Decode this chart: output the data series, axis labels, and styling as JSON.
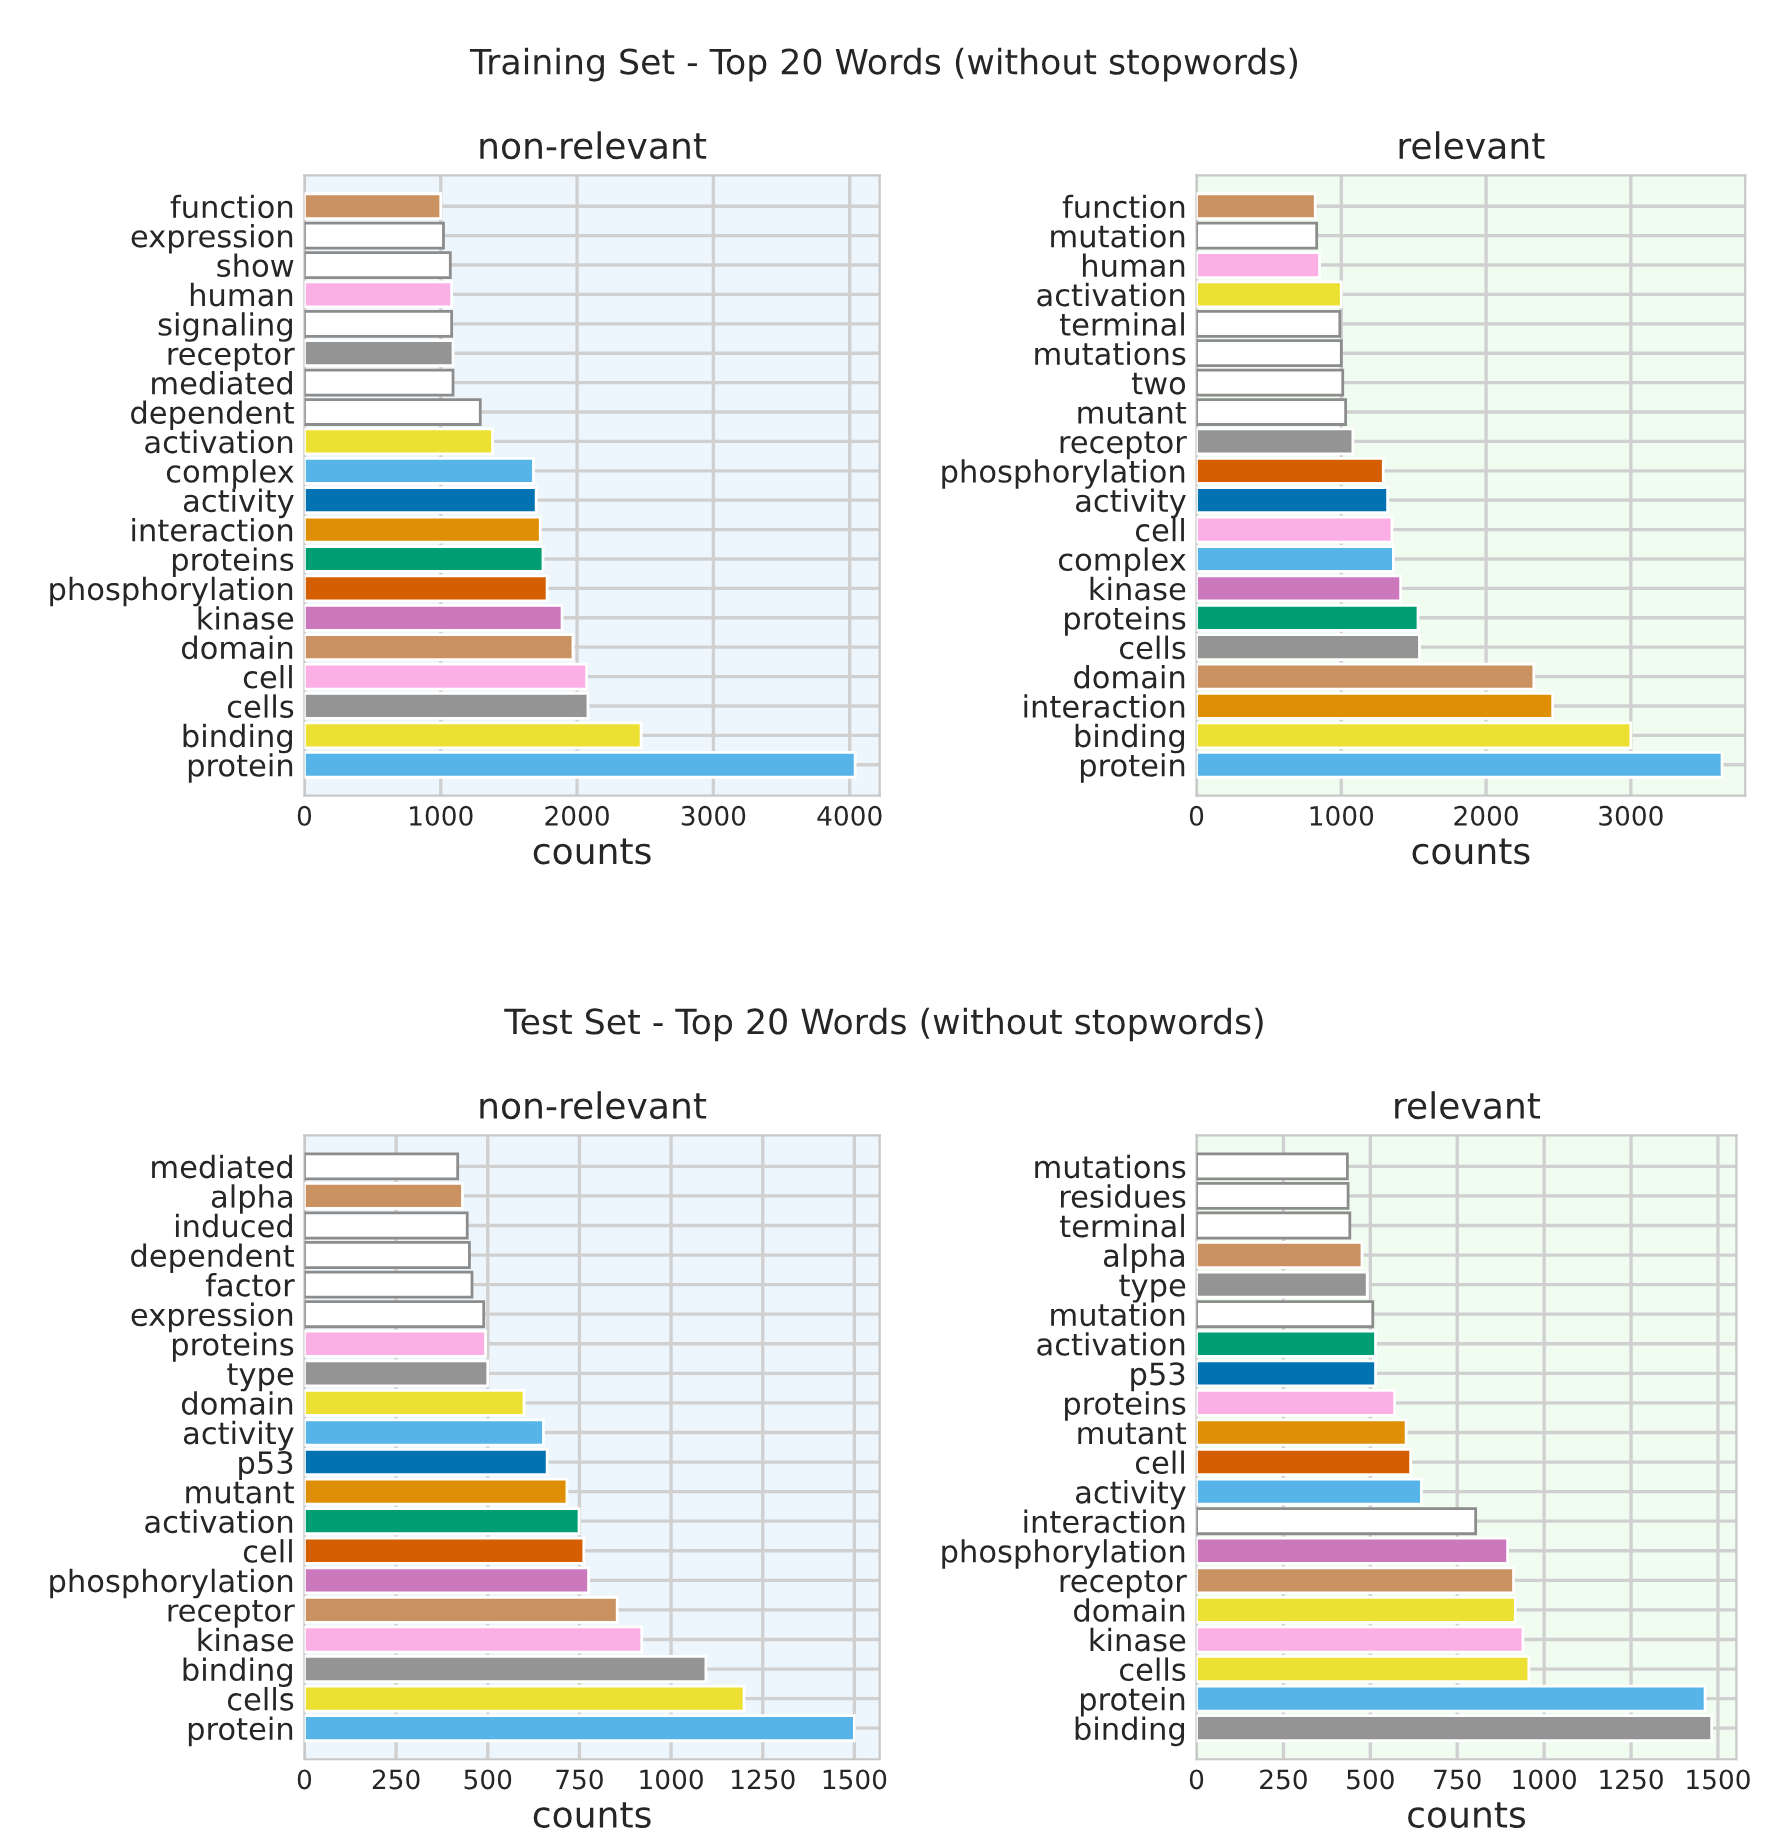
{
  "chart_data": [
    {
      "type": "bar",
      "orientation": "horizontal",
      "title": "non-relevant",
      "xlabel": "counts",
      "annotations": [
        "Training Set - Top 20 Words (without stopwords)"
      ],
      "categories": [
        "function",
        "expression",
        "show",
        "human",
        "signaling",
        "receptor",
        "mediated",
        "dependent",
        "activation",
        "complex",
        "activity",
        "interaction",
        "proteins",
        "phosphorylation",
        "kinase",
        "domain",
        "cell",
        "cells",
        "binding",
        "protein"
      ],
      "values": [
        1000,
        1020,
        1070,
        1080,
        1080,
        1090,
        1090,
        1290,
        1380,
        1680,
        1700,
        1730,
        1750,
        1780,
        1890,
        1970,
        2070,
        2080,
        2470,
        4040
      ],
      "colors": [
        "#ca9161",
        "#ffffff",
        "#ffffff",
        "#fbafe4",
        "#ffffff",
        "#949494",
        "#ffffff",
        "#ffffff",
        "#ece133",
        "#56b4e9",
        "#0173b2",
        "#de8f05",
        "#029e73",
        "#d55e00",
        "#cc78bc",
        "#ca9161",
        "#fbafe4",
        "#949494",
        "#ece133",
        "#56b4e9"
      ],
      "xlim": [
        0,
        4220
      ],
      "xticks": [
        0,
        1000,
        2000,
        3000,
        4000
      ],
      "grid": true,
      "legend": false
    },
    {
      "type": "bar",
      "orientation": "horizontal",
      "title": "relevant",
      "xlabel": "counts",
      "categories": [
        "function",
        "mutation",
        "human",
        "activation",
        "terminal",
        "mutations",
        "two",
        "mutant",
        "receptor",
        "phosphorylation",
        "activity",
        "cell",
        "complex",
        "kinase",
        "proteins",
        "cells",
        "domain",
        "interaction",
        "binding",
        "protein"
      ],
      "values": [
        820,
        830,
        850,
        1000,
        990,
        1000,
        1010,
        1030,
        1080,
        1290,
        1320,
        1350,
        1360,
        1410,
        1530,
        1540,
        2330,
        2460,
        3000,
        3630
      ],
      "colors": [
        "#ca9161",
        "#ffffff",
        "#fbafe4",
        "#ece133",
        "#ffffff",
        "#ffffff",
        "#ffffff",
        "#ffffff",
        "#949494",
        "#d55e00",
        "#0173b2",
        "#fbafe4",
        "#56b4e9",
        "#cc78bc",
        "#029e73",
        "#949494",
        "#ca9161",
        "#de8f05",
        "#ece133",
        "#56b4e9"
      ],
      "xlim": [
        0,
        3790
      ],
      "xticks": [
        0,
        1000,
        2000,
        3000
      ],
      "grid": true,
      "legend": false
    },
    {
      "type": "bar",
      "orientation": "horizontal",
      "title": "non-relevant",
      "xlabel": "counts",
      "annotations": [
        "Test Set - Top 20 Words (without stopwords)"
      ],
      "categories": [
        "mediated",
        "alpha",
        "induced",
        "dependent",
        "factor",
        "expression",
        "proteins",
        "type",
        "domain",
        "activity",
        "p53",
        "mutant",
        "activation",
        "cell",
        "phosphorylation",
        "receptor",
        "kinase",
        "binding",
        "cells",
        "protein"
      ],
      "values": [
        418,
        431,
        444,
        450,
        457,
        489,
        494,
        500,
        599,
        652,
        662,
        716,
        749,
        762,
        775,
        853,
        920,
        1095,
        1199,
        1500
      ],
      "colors": [
        "#ffffff",
        "#ca9161",
        "#ffffff",
        "#ffffff",
        "#ffffff",
        "#ffffff",
        "#fbafe4",
        "#949494",
        "#ece133",
        "#56b4e9",
        "#0173b2",
        "#de8f05",
        "#029e73",
        "#d55e00",
        "#cc78bc",
        "#ca9161",
        "#fbafe4",
        "#949494",
        "#ece133",
        "#56b4e9"
      ],
      "xlim": [
        0,
        1569
      ],
      "xticks": [
        0,
        250,
        500,
        750,
        1000,
        1250,
        1500
      ],
      "grid": true,
      "legend": false
    },
    {
      "type": "bar",
      "orientation": "horizontal",
      "title": "relevant",
      "xlabel": "counts",
      "categories": [
        "mutations",
        "residues",
        "terminal",
        "alpha",
        "type",
        "mutation",
        "activation",
        "p53",
        "proteins",
        "mutant",
        "cell",
        "activity",
        "interaction",
        "phosphorylation",
        "receptor",
        "domain",
        "kinase",
        "cells",
        "protein",
        "binding"
      ],
      "values": [
        434,
        436,
        441,
        476,
        491,
        507,
        515,
        515,
        570,
        603,
        616,
        647,
        803,
        895,
        912,
        917,
        939,
        956,
        1463,
        1482
      ],
      "colors": [
        "#ffffff",
        "#ffffff",
        "#ffffff",
        "#ca9161",
        "#949494",
        "#ffffff",
        "#029e73",
        "#0173b2",
        "#fbafe4",
        "#de8f05",
        "#d55e00",
        "#56b4e9",
        "#ffffff",
        "#cc78bc",
        "#ca9161",
        "#ece133",
        "#fbafe4",
        "#ece133",
        "#56b4e9",
        "#949494"
      ],
      "xlim": [
        0,
        1553
      ],
      "xticks": [
        0,
        250,
        500,
        750,
        1000,
        1250,
        1500
      ],
      "grid": true,
      "legend": false
    }
  ]
}
